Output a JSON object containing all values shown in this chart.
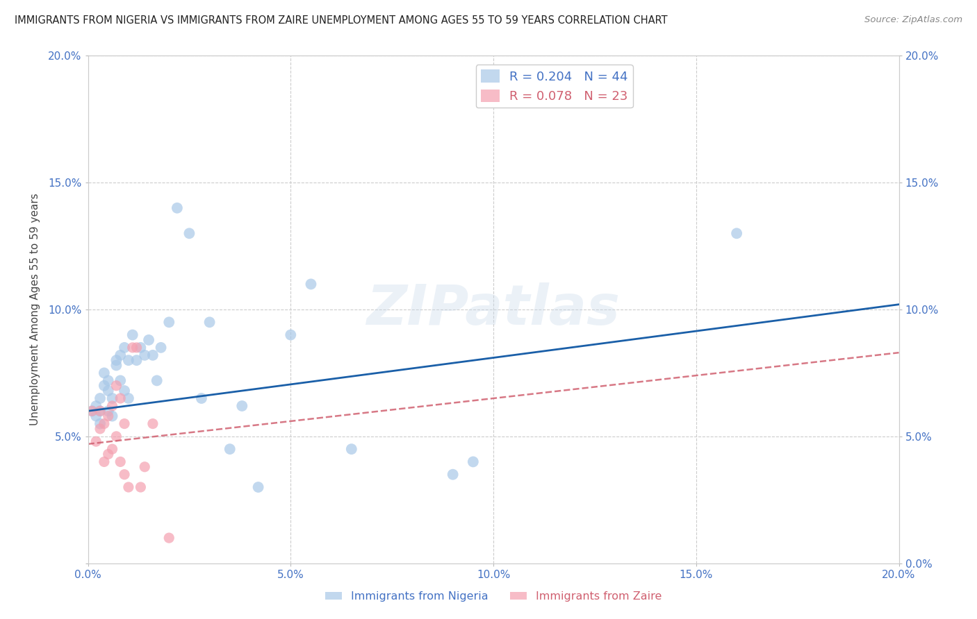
{
  "title": "IMMIGRANTS FROM NIGERIA VS IMMIGRANTS FROM ZAIRE UNEMPLOYMENT AMONG AGES 55 TO 59 YEARS CORRELATION CHART",
  "source": "Source: ZipAtlas.com",
  "ylabel": "Unemployment Among Ages 55 to 59 years",
  "xlim": [
    0,
    0.2
  ],
  "ylim": [
    0,
    0.2
  ],
  "nigeria_color": "#a8c8e8",
  "zaire_color": "#f4a0b0",
  "nigeria_R": 0.204,
  "nigeria_N": 44,
  "zaire_R": 0.078,
  "zaire_N": 23,
  "nigeria_line_color": "#1a5fa8",
  "zaire_line_color": "#d06070",
  "watermark": "ZIPatlas",
  "tick_color": "#4472c4",
  "legend_text_color1": "#4472c4",
  "legend_text_color2": "#d06070",
  "nigeria_line_start_y": 0.06,
  "nigeria_line_end_y": 0.102,
  "zaire_line_start_y": 0.047,
  "zaire_line_end_y": 0.083,
  "nigeria_x": [
    0.001,
    0.002,
    0.002,
    0.003,
    0.003,
    0.003,
    0.004,
    0.004,
    0.005,
    0.005,
    0.005,
    0.006,
    0.006,
    0.007,
    0.007,
    0.008,
    0.008,
    0.009,
    0.009,
    0.01,
    0.01,
    0.011,
    0.012,
    0.013,
    0.014,
    0.015,
    0.016,
    0.017,
    0.018,
    0.02,
    0.022,
    0.025,
    0.028,
    0.03,
    0.035,
    0.038,
    0.042,
    0.05,
    0.055,
    0.065,
    0.09,
    0.095,
    0.11,
    0.16
  ],
  "nigeria_y": [
    0.06,
    0.058,
    0.062,
    0.055,
    0.06,
    0.065,
    0.07,
    0.075,
    0.06,
    0.068,
    0.072,
    0.058,
    0.065,
    0.08,
    0.078,
    0.082,
    0.072,
    0.068,
    0.085,
    0.065,
    0.08,
    0.09,
    0.08,
    0.085,
    0.082,
    0.088,
    0.082,
    0.072,
    0.085,
    0.095,
    0.14,
    0.13,
    0.065,
    0.095,
    0.045,
    0.062,
    0.03,
    0.09,
    0.11,
    0.045,
    0.035,
    0.04,
    0.185,
    0.13
  ],
  "zaire_x": [
    0.001,
    0.002,
    0.003,
    0.003,
    0.004,
    0.004,
    0.005,
    0.005,
    0.006,
    0.006,
    0.007,
    0.007,
    0.008,
    0.008,
    0.009,
    0.009,
    0.01,
    0.011,
    0.012,
    0.013,
    0.014,
    0.016,
    0.02
  ],
  "zaire_y": [
    0.06,
    0.048,
    0.053,
    0.06,
    0.04,
    0.055,
    0.043,
    0.058,
    0.045,
    0.062,
    0.07,
    0.05,
    0.065,
    0.04,
    0.035,
    0.055,
    0.03,
    0.085,
    0.085,
    0.03,
    0.038,
    0.055,
    0.01
  ]
}
